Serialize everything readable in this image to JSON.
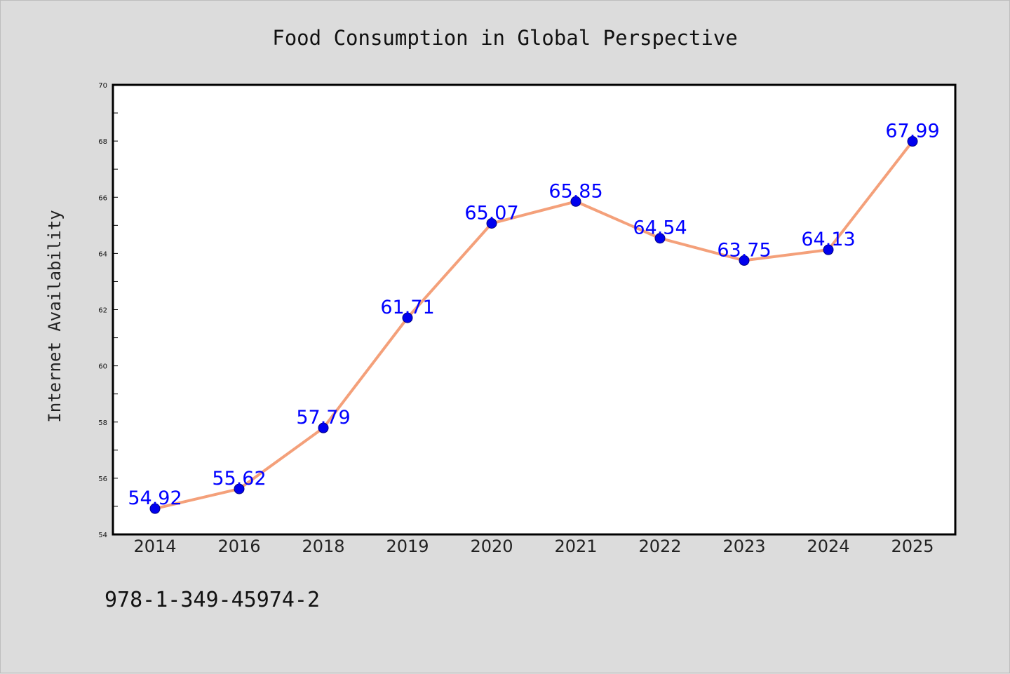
{
  "chart_data": {
    "type": "line",
    "title": "Food Consumption in Global Perspective",
    "xlabel": "",
    "ylabel": "Internet Availability",
    "categories": [
      "2014",
      "2016",
      "2018",
      "2019",
      "2020",
      "2021",
      "2022",
      "2023",
      "2024",
      "2025"
    ],
    "values": [
      54.92,
      55.62,
      57.79,
      61.71,
      65.07,
      65.85,
      64.54,
      63.75,
      64.13,
      67.99
    ],
    "data_labels": [
      "54.92",
      "55.62",
      "57.79",
      "61.71",
      "65.07",
      "65.85",
      "64.54",
      "63.75",
      "64.13",
      "67.99"
    ],
    "ylim": [
      54,
      70
    ],
    "yticks": [
      54,
      56,
      58,
      60,
      62,
      64,
      66,
      68,
      70
    ],
    "ytick_labels": [
      "54",
      "56",
      "58",
      "60",
      "62",
      "64",
      "66",
      "68",
      "70"
    ],
    "grid": false,
    "legend": "none"
  },
  "footer": {
    "text": "978-1-349-45974-2"
  },
  "colors": {
    "background": "#dcdcdc",
    "plot_background": "#ffffff",
    "line": "#f4a07a",
    "marker": "#0000ee",
    "data_label": "#0000ff",
    "axis": "#000000"
  }
}
